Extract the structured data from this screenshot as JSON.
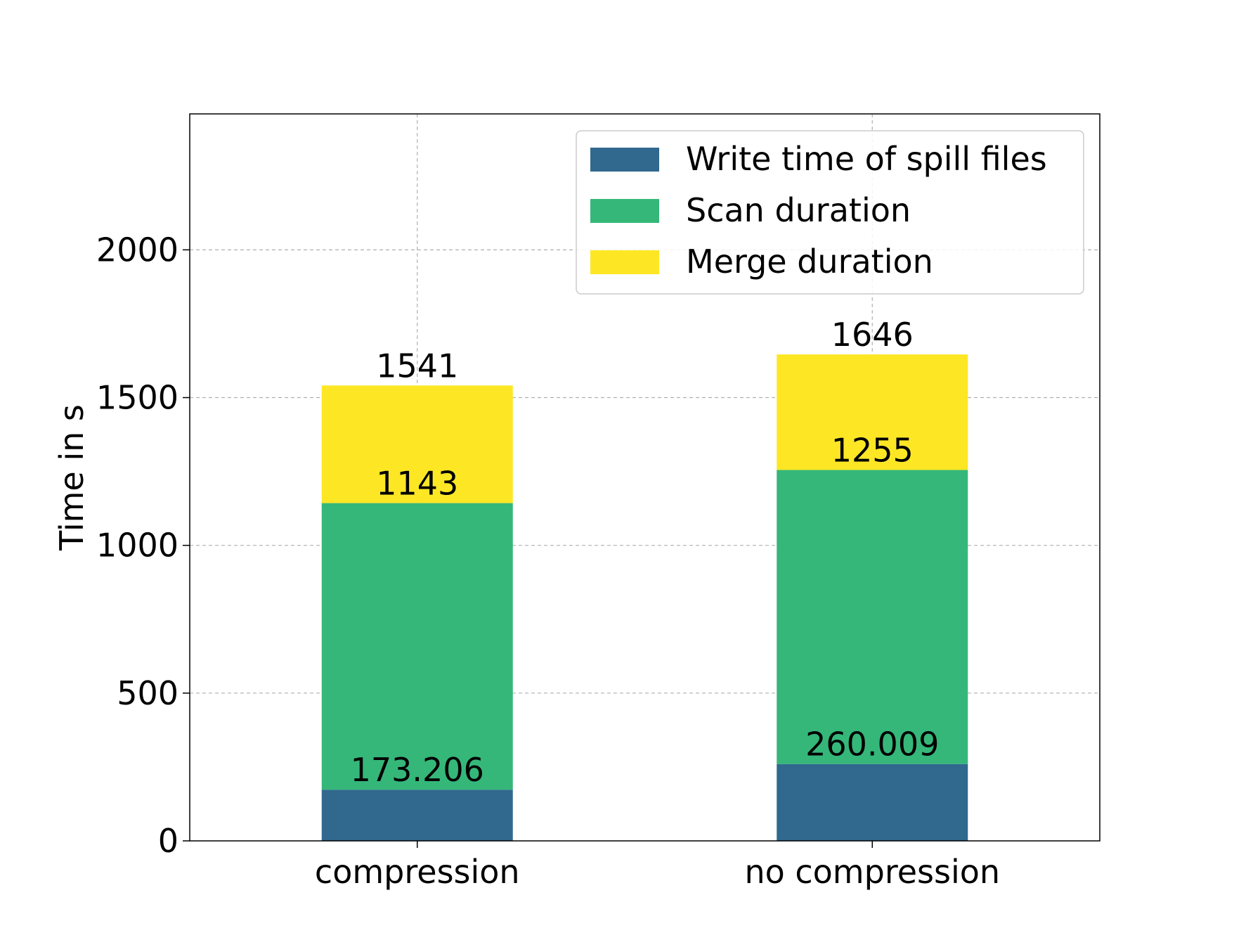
{
  "chart_data": {
    "type": "bar",
    "stacked": true,
    "categories": [
      "compression",
      "no compression"
    ],
    "series": [
      {
        "name": "Write time of spill files",
        "values": [
          173.206,
          260.009
        ],
        "color": "#31688e"
      },
      {
        "name": "Scan duration",
        "values": [
          969.794,
          994.991
        ],
        "color": "#35b779"
      },
      {
        "name": "Merge duration",
        "values": [
          398,
          391
        ],
        "color": "#fde725"
      }
    ],
    "data_labels": [
      [
        "173.206",
        "260.009"
      ],
      [
        "1143",
        "1255"
      ],
      [
        "1541",
        "1646"
      ]
    ],
    "title": "",
    "xlabel": "",
    "ylabel": "Time in s",
    "ylim": [
      0,
      2460
    ],
    "yticks": [
      0,
      500,
      1000,
      1500,
      2000
    ],
    "grid": true,
    "legend_position": "top-right"
  }
}
